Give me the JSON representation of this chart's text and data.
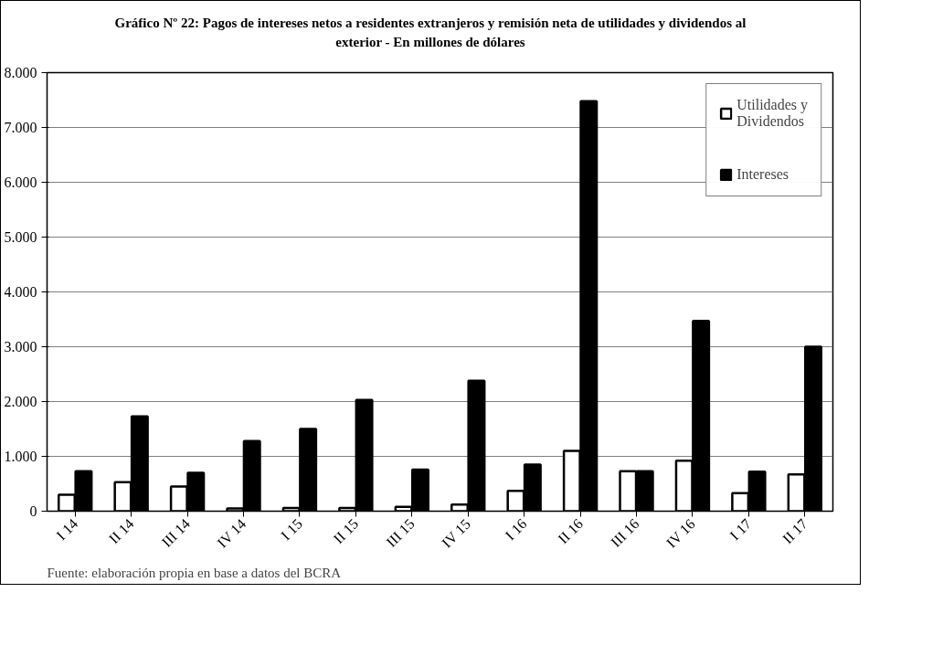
{
  "chart_data": {
    "type": "bar",
    "title": "Gráfico Nº 22:  Pagos de intereses netos a residentes extranjeros y remisión neta de utilidades y dividendos al exterior - En millones de dólares",
    "categories": [
      "I 14",
      "II 14",
      "III 14",
      "IV 14",
      "I 15",
      "II 15",
      "III 15",
      "IV 15",
      "I 16",
      "II 16",
      "III 16",
      "IV 16",
      "I 17",
      "II 17"
    ],
    "series": [
      {
        "name": "Utilidades y Dividendos",
        "color": "#ffffff",
        "values": [
          300,
          530,
          450,
          50,
          60,
          60,
          80,
          120,
          370,
          1100,
          730,
          920,
          330,
          670
        ]
      },
      {
        "name": "Intereses",
        "color": "#000000",
        "values": [
          730,
          1730,
          700,
          1280,
          1500,
          2030,
          760,
          2380,
          850,
          7480,
          730,
          3470,
          720,
          3000
        ]
      }
    ],
    "ylim": [
      0,
      8000
    ],
    "yticks": [
      0,
      {
        "value": 1000,
        "label": "1.000"
      },
      {
        "value": 2000,
        "label": "2.000"
      },
      {
        "value": 3000,
        "label": "3.000"
      },
      {
        "value": 4000,
        "label": "4.000"
      },
      {
        "value": 5000,
        "label": "5.000"
      },
      {
        "value": 6000,
        "label": "6.000"
      },
      {
        "value": 7000,
        "label": "7.000"
      },
      {
        "value": 8000,
        "label": "8.000"
      }
    ],
    "grid": "y",
    "legend": "top right",
    "annotations": [
      "Fuente: elaboración propia en base a datos del BCRA"
    ]
  }
}
